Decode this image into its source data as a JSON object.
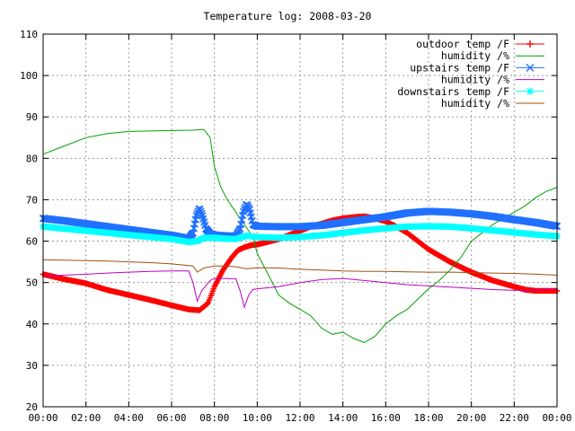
{
  "chart_data": {
    "type": "line",
    "title": "Temperature log: 2008-03-20",
    "xlim": [
      0,
      24
    ],
    "ylim": [
      20,
      110
    ],
    "x_ticks": [
      "00:00",
      "02:00",
      "04:00",
      "06:00",
      "08:00",
      "10:00",
      "12:00",
      "14:00",
      "16:00",
      "18:00",
      "20:00",
      "22:00",
      "00:00"
    ],
    "y_ticks": [
      "20",
      "30",
      "40",
      "50",
      "60",
      "70",
      "80",
      "90",
      "100",
      "110"
    ],
    "grid": true,
    "legend_position": "top-right",
    "series": [
      {
        "name": "outdoor temp /F",
        "color": "#ff0000",
        "marker": "plus",
        "points": [
          [
            0,
            52
          ],
          [
            1,
            50.8
          ],
          [
            2,
            49.8
          ],
          [
            3,
            48.2
          ],
          [
            4,
            47
          ],
          [
            5,
            45.8
          ],
          [
            6,
            44.5
          ],
          [
            6.8,
            43.5
          ],
          [
            7.3,
            43.3
          ],
          [
            7.7,
            45
          ],
          [
            8,
            49
          ],
          [
            8.4,
            53
          ],
          [
            8.8,
            56
          ],
          [
            9.1,
            57.8
          ],
          [
            9.4,
            58.5
          ],
          [
            9.7,
            59
          ],
          [
            10,
            59.2
          ],
          [
            10.5,
            59.8
          ],
          [
            11,
            60.5
          ],
          [
            11.5,
            61.5
          ],
          [
            12,
            62.5
          ],
          [
            12.5,
            63.5
          ],
          [
            13,
            64.2
          ],
          [
            13.5,
            65
          ],
          [
            14,
            65.5
          ],
          [
            14.5,
            65.8
          ],
          [
            15,
            66
          ],
          [
            15.5,
            65.5
          ],
          [
            16,
            64.8
          ],
          [
            16.5,
            63.5
          ],
          [
            17,
            62
          ],
          [
            17.5,
            60
          ],
          [
            18,
            58
          ],
          [
            19,
            55
          ],
          [
            20,
            52.5
          ],
          [
            21,
            50.5
          ],
          [
            22,
            49
          ],
          [
            22.5,
            48.3
          ],
          [
            23,
            48
          ],
          [
            24,
            48
          ]
        ]
      },
      {
        "name": "humidity /%",
        "color": "#00a000",
        "marker": "none",
        "points": [
          [
            0,
            81
          ],
          [
            1,
            83
          ],
          [
            2,
            85
          ],
          [
            3,
            86
          ],
          [
            4,
            86.5
          ],
          [
            5,
            86.6
          ],
          [
            6,
            86.7
          ],
          [
            7,
            86.8
          ],
          [
            7.5,
            87
          ],
          [
            7.8,
            85
          ],
          [
            8,
            78
          ],
          [
            8.3,
            73
          ],
          [
            8.6,
            70
          ],
          [
            9,
            67
          ],
          [
            9.4,
            64
          ],
          [
            9.8,
            61
          ],
          [
            10,
            57
          ],
          [
            10.5,
            52
          ],
          [
            11,
            47
          ],
          [
            11.5,
            45
          ],
          [
            12,
            43.5
          ],
          [
            12.5,
            42
          ],
          [
            13,
            39
          ],
          [
            13.5,
            37.5
          ],
          [
            14,
            38
          ],
          [
            14.5,
            36.5
          ],
          [
            15,
            35.5
          ],
          [
            15.5,
            37
          ],
          [
            16,
            40
          ],
          [
            16.5,
            42
          ],
          [
            17,
            43.5
          ],
          [
            17.5,
            46
          ],
          [
            18,
            48.5
          ],
          [
            18.5,
            50.5
          ],
          [
            19,
            53
          ],
          [
            19.5,
            56
          ],
          [
            20,
            60
          ],
          [
            20.5,
            62
          ],
          [
            21,
            64
          ],
          [
            21.5,
            65.5
          ],
          [
            22,
            67
          ],
          [
            22.5,
            68.5
          ],
          [
            23,
            70.5
          ],
          [
            23.5,
            72
          ],
          [
            24,
            73
          ]
        ]
      },
      {
        "name": "upstairs temp /F",
        "color": "#2070ff",
        "marker": "x",
        "points": [
          [
            0,
            65.5
          ],
          [
            1,
            64.9
          ],
          [
            2,
            64.2
          ],
          [
            3,
            63.5
          ],
          [
            4,
            62.8
          ],
          [
            5,
            62.1
          ],
          [
            6,
            61.4
          ],
          [
            6.8,
            60.6
          ],
          [
            7,
            62
          ],
          [
            7.15,
            66
          ],
          [
            7.3,
            68
          ],
          [
            7.45,
            66
          ],
          [
            7.6,
            63
          ],
          [
            7.8,
            61.8
          ],
          [
            8,
            61.5
          ],
          [
            8.5,
            61.3
          ],
          [
            9,
            61.2
          ],
          [
            9.2,
            63
          ],
          [
            9.35,
            67
          ],
          [
            9.5,
            69
          ],
          [
            9.65,
            67.5
          ],
          [
            9.8,
            64
          ],
          [
            10,
            63.6
          ],
          [
            11,
            63.5
          ],
          [
            12,
            63.5
          ],
          [
            13,
            63.8
          ],
          [
            14,
            64.5
          ],
          [
            15,
            65.2
          ],
          [
            16,
            65.9
          ],
          [
            17,
            66.8
          ],
          [
            18,
            67.2
          ],
          [
            19,
            67
          ],
          [
            20,
            66.6
          ],
          [
            21,
            66
          ],
          [
            22,
            65.2
          ],
          [
            23,
            64.5
          ],
          [
            24,
            63.6
          ]
        ]
      },
      {
        "name": "humidity /%",
        "color": "#c000c0",
        "marker": "none",
        "points": [
          [
            0,
            51.5
          ],
          [
            1,
            51.8
          ],
          [
            2,
            52
          ],
          [
            3,
            52.3
          ],
          [
            4,
            52.5
          ],
          [
            5,
            52.7
          ],
          [
            6,
            52.8
          ],
          [
            6.8,
            52.8
          ],
          [
            7,
            50
          ],
          [
            7.2,
            45.5
          ],
          [
            7.4,
            48
          ],
          [
            7.8,
            50.5
          ],
          [
            8,
            51
          ],
          [
            8.5,
            51
          ],
          [
            9,
            50.9
          ],
          [
            9.2,
            48
          ],
          [
            9.4,
            44
          ],
          [
            9.6,
            47
          ],
          [
            9.8,
            48.3
          ],
          [
            10,
            48.5
          ],
          [
            11,
            49
          ],
          [
            12,
            50
          ],
          [
            13,
            50.7
          ],
          [
            14,
            51
          ],
          [
            15,
            50.5
          ],
          [
            16,
            50
          ],
          [
            17,
            49.5
          ],
          [
            18,
            49.2
          ],
          [
            19,
            48.9
          ],
          [
            20,
            48.6
          ],
          [
            21,
            48.3
          ],
          [
            22,
            48.1
          ],
          [
            23,
            48.2
          ],
          [
            24,
            48.4
          ]
        ]
      },
      {
        "name": "downstairs temp /F",
        "color": "#00ffff",
        "marker": "star",
        "points": [
          [
            0,
            63.5
          ],
          [
            1,
            63
          ],
          [
            2,
            62.5
          ],
          [
            3,
            62
          ],
          [
            4,
            61.5
          ],
          [
            5,
            61
          ],
          [
            6,
            60.5
          ],
          [
            6.8,
            59.8
          ],
          [
            7.2,
            60
          ],
          [
            7.5,
            60.8
          ],
          [
            8,
            60.8
          ],
          [
            8.5,
            60.6
          ],
          [
            9,
            60.5
          ],
          [
            9.5,
            61.3
          ],
          [
            10,
            61
          ],
          [
            11,
            60.8
          ],
          [
            12,
            61
          ],
          [
            13,
            61.4
          ],
          [
            14,
            62
          ],
          [
            15,
            62.6
          ],
          [
            16,
            63.1
          ],
          [
            17,
            63.5
          ],
          [
            18,
            63.6
          ],
          [
            19,
            63.5
          ],
          [
            20,
            63.1
          ],
          [
            21,
            62.6
          ],
          [
            22,
            62.1
          ],
          [
            23,
            61.6
          ],
          [
            24,
            61.2
          ]
        ]
      },
      {
        "name": "humidity /%",
        "color": "#a05010",
        "marker": "none",
        "points": [
          [
            0,
            55.5
          ],
          [
            1,
            55.4
          ],
          [
            2,
            55.3
          ],
          [
            3,
            55.2
          ],
          [
            4,
            55
          ],
          [
            5,
            54.8
          ],
          [
            6,
            54.5
          ],
          [
            7,
            54
          ],
          [
            7.2,
            52.5
          ],
          [
            7.5,
            53.5
          ],
          [
            8,
            54
          ],
          [
            8.5,
            54
          ],
          [
            9,
            53.8
          ],
          [
            9.5,
            53.3
          ],
          [
            10,
            53.6
          ],
          [
            11,
            53.5
          ],
          [
            12,
            53.2
          ],
          [
            13,
            53
          ],
          [
            14,
            52.8
          ],
          [
            15,
            52.7
          ],
          [
            16,
            52.7
          ],
          [
            17,
            52.6
          ],
          [
            18,
            52.5
          ],
          [
            19,
            52.5
          ],
          [
            20,
            52.4
          ],
          [
            21,
            52.3
          ],
          [
            22,
            52.2
          ],
          [
            23,
            52
          ],
          [
            24,
            51.8
          ]
        ]
      }
    ]
  }
}
